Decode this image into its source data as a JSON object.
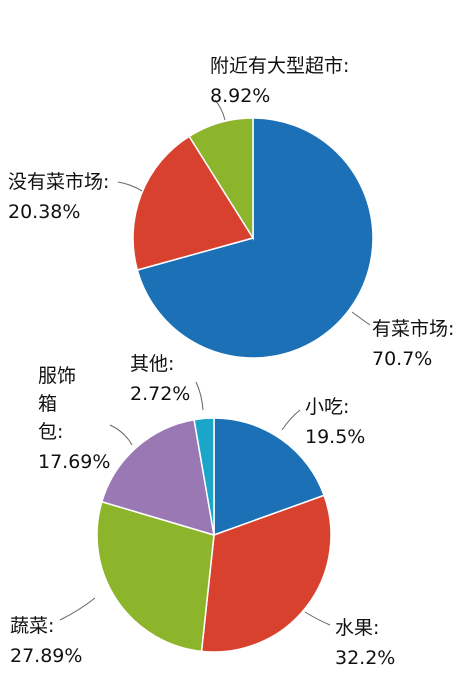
{
  "chart_data": [
    {
      "type": "pie",
      "categories": [
        "有菜市场:",
        "没有菜市场:",
        "附近有大型超市:"
      ],
      "values": [
        70.7,
        20.38,
        8.92
      ],
      "value_labels": [
        "70.7%",
        "20.38%",
        "8.92%"
      ],
      "colors": [
        "#1c70b5",
        "#d9412f",
        "#8cb52b"
      ]
    },
    {
      "type": "pie",
      "categories": [
        "小吃:",
        "水果:",
        "蔬菜:",
        "服饰箱包:",
        "其他:"
      ],
      "values": [
        19.5,
        32.2,
        27.89,
        17.69,
        2.72
      ],
      "value_labels": [
        "19.5%",
        "32.2%",
        "27.89%",
        "17.69%",
        "2.72%"
      ],
      "colors": [
        "#1c70b5",
        "#d9412f",
        "#8cb52b",
        "#9a78b4",
        "#1ba5c9"
      ]
    }
  ]
}
